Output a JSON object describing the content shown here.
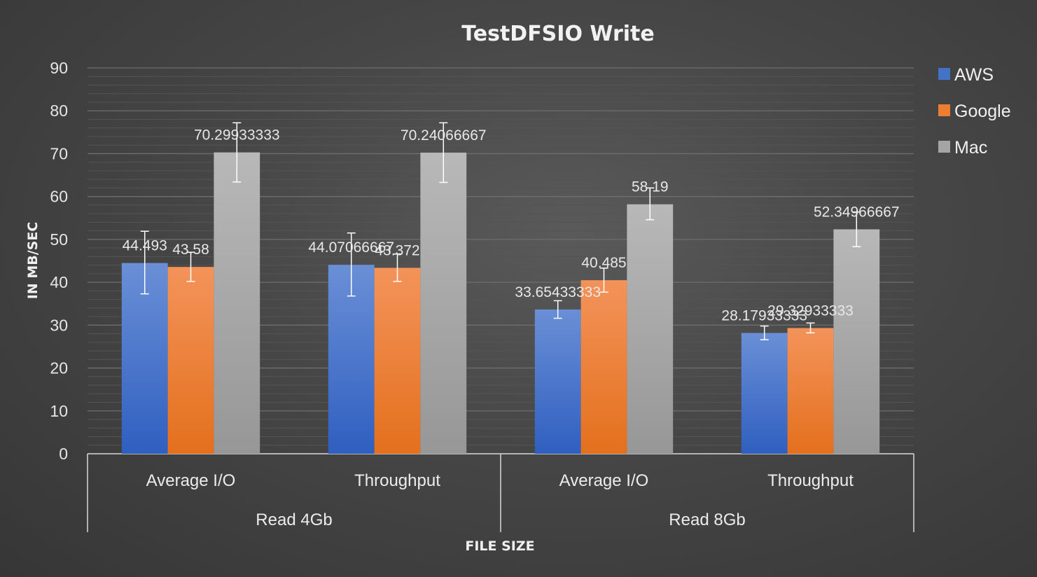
{
  "chart_data": {
    "type": "bar",
    "title": "TestDFSIO Write",
    "xlabel": "FILE SIZE",
    "ylabel": "IN MB/SEC",
    "ylim": [
      0,
      90
    ],
    "yticks": [
      0,
      10,
      20,
      30,
      40,
      50,
      60,
      70,
      80,
      90
    ],
    "grid": true,
    "legend_position": "right",
    "categories": [
      "Average I/O",
      "Throughput",
      "Average I/O",
      "Throughput"
    ],
    "groups": [
      {
        "label": "Read 4Gb",
        "categories": [
          "Average I/O",
          "Throughput"
        ]
      },
      {
        "label": "Read 8Gb",
        "categories": [
          "Average I/O",
          "Throughput"
        ]
      }
    ],
    "series": [
      {
        "name": "AWS",
        "color": "#4472c4",
        "values": [
          44.493,
          44.07066667,
          33.65433333,
          28.17933333
        ],
        "labels": [
          "44.493",
          "44.07066667",
          "33.65433333",
          "28.17933333"
        ],
        "error_low": [
          37.3,
          36.8,
          31.6,
          26.6
        ],
        "error_high": [
          51.9,
          51.5,
          35.7,
          29.8
        ]
      },
      {
        "name": "Google",
        "color": "#ed7d31",
        "values": [
          43.58,
          43.372,
          40.485,
          29.32933333
        ],
        "labels": [
          "43.58",
          "43.372",
          "40.485",
          "29.32933333"
        ],
        "error_low": [
          40.2,
          40.2,
          37.7,
          28.2
        ],
        "error_high": [
          47.0,
          46.6,
          43.3,
          30.5
        ]
      },
      {
        "name": "Mac",
        "color": "#a5a5a5",
        "values": [
          70.29933333,
          70.24066667,
          58.19,
          52.34966667
        ],
        "labels": [
          "70.29933333",
          "70.24066667",
          "58.19",
          "52.34966667"
        ],
        "error_low": [
          63.4,
          63.3,
          54.6,
          48.3
        ],
        "error_high": [
          77.2,
          77.2,
          62.0,
          56.4
        ]
      }
    ]
  }
}
